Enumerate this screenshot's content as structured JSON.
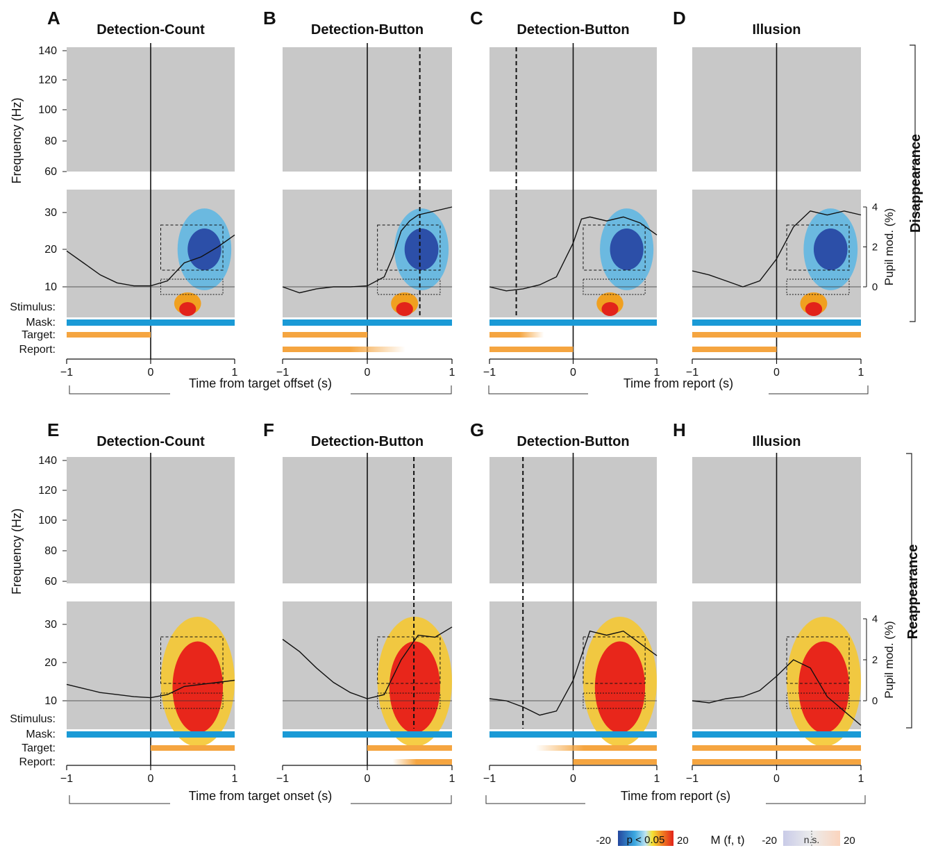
{
  "figure": {
    "side_labels": {
      "disappearance": "Disappearance",
      "reappearance": "Reappearance"
    },
    "y_label": "Frequency (Hz)",
    "pupil_label": "Pupil mod. (%)",
    "pupil_ticks": [
      "4",
      "2",
      "0"
    ],
    "row_labels": [
      "Stimulus:",
      "Mask:",
      "Target:",
      "Report:"
    ],
    "x_ticks": [
      "−1",
      "0",
      "1"
    ],
    "x_title_top": {
      "target": "Time from target offset (s)",
      "report": "Time from report (s)"
    },
    "x_title_bottom": {
      "target": "Time from target onset (s)",
      "report": "Time from report (s)"
    },
    "colorbar": {
      "sig_min": "-20",
      "sig_text": "p < 0.05",
      "sig_max": "20",
      "middle": "M (f, t)",
      "ns_min": "-20",
      "ns_text": "n.s.",
      "ns_max": "20"
    },
    "colors": {
      "mask": "#1a9ad6",
      "target": "#f5a540",
      "sig_neg": "#2c4fa8",
      "sig_pos": "#e8261b",
      "nonsig": "#c8c8c8"
    }
  },
  "chart_data": [
    {
      "panel": "A",
      "title": "Detection-Count",
      "type": "heatmap",
      "condition": "Disappearance",
      "xlabel": "Time from target offset (s)",
      "ylabel": "Frequency (Hz)",
      "xlim": [
        -1,
        1
      ],
      "high_freq_ticks": [
        60,
        80,
        100,
        120,
        140
      ],
      "low_freq_ticks": [
        10,
        20,
        30
      ],
      "dashed_report_time": null,
      "effect": "negative",
      "pupil": {
        "x": [
          -1,
          -0.8,
          -0.6,
          -0.4,
          -0.2,
          0,
          0.2,
          0.4,
          0.6,
          0.8,
          1
        ],
        "y": [
          1.8,
          1.2,
          0.6,
          0.2,
          0.05,
          0.05,
          0.3,
          1.2,
          1.5,
          2.0,
          2.6
        ]
      },
      "bars": {
        "mask": [
          [
            -1,
            1
          ]
        ],
        "target": [
          [
            -1,
            0
          ]
        ],
        "report": []
      }
    },
    {
      "panel": "B",
      "title": "Detection-Button",
      "type": "heatmap",
      "condition": "Disappearance",
      "xlabel": "Time from target offset (s)",
      "ylabel": "",
      "xlim": [
        -1,
        1
      ],
      "dashed_report_time": 0.62,
      "effect": "negative",
      "pupil": {
        "x": [
          -1,
          -0.8,
          -0.6,
          -0.4,
          -0.2,
          0,
          0.2,
          0.3,
          0.4,
          0.5,
          0.6,
          0.8,
          1
        ],
        "y": [
          0,
          -0.3,
          -0.1,
          0,
          0,
          0.05,
          0.5,
          1.5,
          2.8,
          3.3,
          3.6,
          3.8,
          4.0
        ]
      },
      "bars": {
        "mask": [
          [
            -1,
            1
          ]
        ],
        "target": [
          [
            -1,
            0
          ]
        ],
        "report": [
          [
            -1,
            0.45
          ]
        ]
      }
    },
    {
      "panel": "C",
      "title": "Detection-Button",
      "type": "heatmap",
      "condition": "Disappearance",
      "xlabel": "Time from report (s)",
      "ylabel": "",
      "xlim": [
        -1,
        1
      ],
      "dashed_report_time": -0.68,
      "effect": "negative",
      "pupil": {
        "x": [
          -1,
          -0.8,
          -0.6,
          -0.4,
          -0.2,
          0,
          0.1,
          0.2,
          0.4,
          0.6,
          0.8,
          1
        ],
        "y": [
          0,
          -0.2,
          -0.1,
          0.1,
          0.5,
          2.2,
          3.4,
          3.5,
          3.3,
          3.5,
          3.2,
          2.6
        ]
      },
      "bars": {
        "mask": [
          [
            -1,
            1
          ]
        ],
        "target": [
          [
            -1,
            -0.35
          ]
        ],
        "report": [
          [
            -1,
            0
          ]
        ]
      }
    },
    {
      "panel": "D",
      "title": "Illusion",
      "type": "heatmap",
      "condition": "Disappearance",
      "xlabel": "Time from report (s)",
      "ylabel": "",
      "xlim": [
        -1,
        1
      ],
      "dashed_report_time": null,
      "effect": "negative",
      "pupil": {
        "x": [
          -1,
          -0.8,
          -0.6,
          -0.4,
          -0.2,
          0,
          0.2,
          0.4,
          0.6,
          0.8,
          1
        ],
        "y": [
          0.8,
          0.6,
          0.3,
          0,
          0.3,
          1.4,
          3.0,
          3.8,
          3.6,
          3.8,
          3.6
        ]
      },
      "bars": {
        "mask": [
          [
            -1,
            1
          ]
        ],
        "target": [
          [
            -1,
            1
          ]
        ],
        "report": [
          [
            -1,
            0
          ]
        ]
      }
    },
    {
      "panel": "E",
      "title": "Detection-Count",
      "type": "heatmap",
      "condition": "Reappearance",
      "xlabel": "Time from target onset (s)",
      "ylabel": "Frequency (Hz)",
      "xlim": [
        -1,
        1
      ],
      "dashed_report_time": null,
      "effect": "positive",
      "pupil": {
        "x": [
          -1,
          -0.8,
          -0.6,
          -0.4,
          -0.2,
          0,
          0.2,
          0.4,
          0.6,
          0.8,
          1
        ],
        "y": [
          0.8,
          0.6,
          0.4,
          0.3,
          0.2,
          0.15,
          0.3,
          0.7,
          0.8,
          0.9,
          1.0
        ]
      },
      "bars": {
        "mask": [
          [
            -1,
            1
          ]
        ],
        "target": [
          [
            0,
            1
          ]
        ],
        "report": []
      }
    },
    {
      "panel": "F",
      "title": "Detection-Button",
      "type": "heatmap",
      "condition": "Reappearance",
      "xlabel": "Time from target onset (s)",
      "ylabel": "",
      "xlim": [
        -1,
        1
      ],
      "dashed_report_time": 0.55,
      "effect": "positive",
      "pupil": {
        "x": [
          -1,
          -0.8,
          -0.6,
          -0.4,
          -0.2,
          0,
          0.2,
          0.4,
          0.6,
          0.8,
          1
        ],
        "y": [
          3.0,
          2.4,
          1.6,
          0.9,
          0.4,
          0.1,
          0.3,
          2.0,
          3.2,
          3.1,
          3.6
        ]
      },
      "bars": {
        "mask": [
          [
            -1,
            1
          ]
        ],
        "target": [
          [
            0,
            1
          ]
        ],
        "report": [
          [
            0.3,
            1
          ]
        ]
      }
    },
    {
      "panel": "G",
      "title": "Detection-Button",
      "type": "heatmap",
      "condition": "Reappearance",
      "xlabel": "Time from report (s)",
      "ylabel": "",
      "xlim": [
        -1,
        1
      ],
      "dashed_report_time": -0.6,
      "effect": "positive",
      "pupil": {
        "x": [
          -1,
          -0.8,
          -0.6,
          -0.4,
          -0.2,
          0,
          0.2,
          0.4,
          0.6,
          0.8,
          1
        ],
        "y": [
          0.1,
          0,
          -0.3,
          -0.7,
          -0.5,
          1.0,
          3.4,
          3.2,
          3.4,
          2.8,
          2.2
        ]
      },
      "bars": {
        "mask": [
          [
            -1,
            1
          ]
        ],
        "target": [
          [
            -0.45,
            1
          ]
        ],
        "report": [
          [
            0,
            1
          ]
        ]
      }
    },
    {
      "panel": "H",
      "title": "Illusion",
      "type": "heatmap",
      "condition": "Reappearance",
      "xlabel": "Time from report (s)",
      "ylabel": "",
      "xlim": [
        -1,
        1
      ],
      "dashed_report_time": null,
      "effect": "positive",
      "pupil": {
        "x": [
          -1,
          -0.8,
          -0.6,
          -0.4,
          -0.2,
          0,
          0.2,
          0.4,
          0.6,
          0.8,
          1
        ],
        "y": [
          0,
          -0.1,
          0.1,
          0.2,
          0.5,
          1.2,
          2.0,
          1.6,
          0.2,
          -0.5,
          -1.2
        ]
      },
      "bars": {
        "mask": [
          [
            -1,
            1
          ]
        ],
        "target": [
          [
            -1,
            1
          ]
        ],
        "report": [
          [
            -1,
            1
          ]
        ]
      }
    }
  ]
}
